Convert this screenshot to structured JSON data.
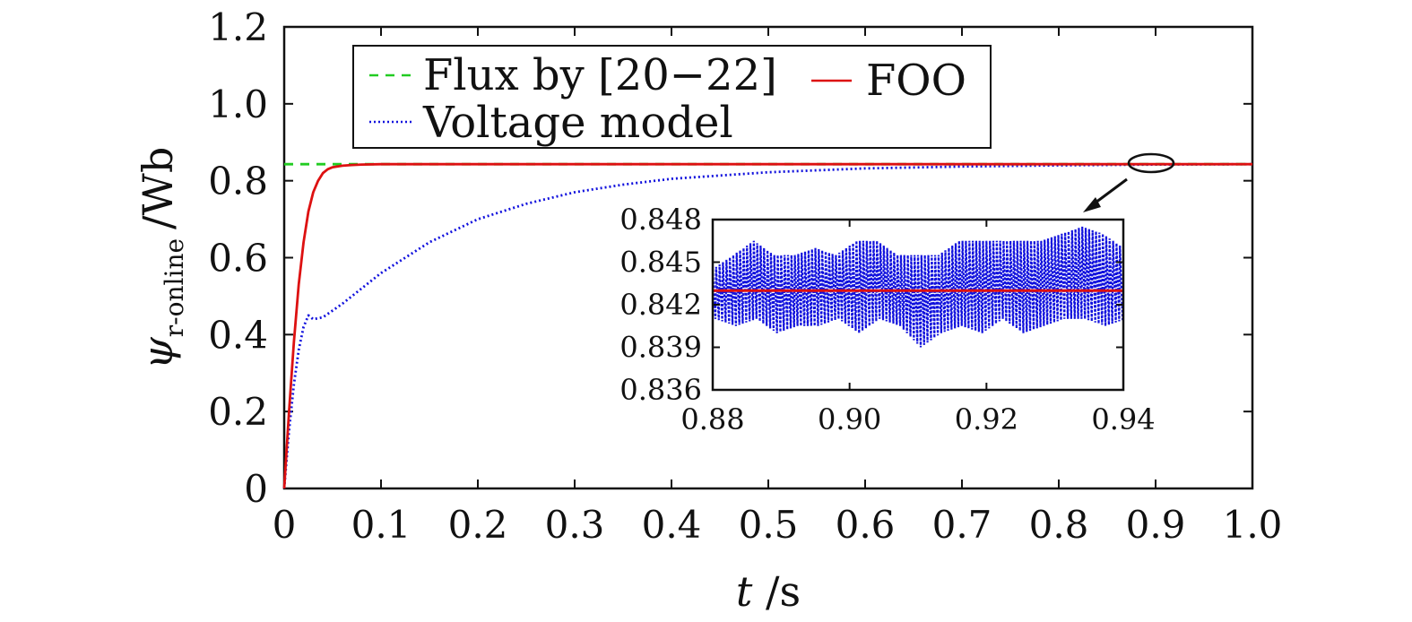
{
  "chart_data": [
    {
      "type": "line",
      "xlabel": "t /s",
      "xlabel_parts": {
        "var": "t",
        "unit": " /s"
      },
      "ylabel": "ψr-online /Wb",
      "ylabel_parts": {
        "psi": "ψ",
        "sub": "r-online",
        "unit": "/Wb"
      },
      "xlim": [
        0,
        1.0
      ],
      "ylim": [
        0,
        1.2
      ],
      "xticks": [
        0,
        0.1,
        0.2,
        0.3,
        0.4,
        0.5,
        0.6,
        0.7,
        0.8,
        0.9,
        1.0
      ],
      "xtick_labels": [
        "0",
        "0.1",
        "0.2",
        "0.3",
        "0.4",
        "0.5",
        "0.6",
        "0.7",
        "0.8",
        "0.9",
        "1.0"
      ],
      "yticks": [
        0,
        0.2,
        0.4,
        0.6,
        0.8,
        1.0,
        1.2
      ],
      "ytick_labels": [
        "0",
        "0.2",
        "0.4",
        "0.6",
        "0.8",
        "1.0",
        "1.2"
      ],
      "grid": false,
      "legend": {
        "position": "top-left"
      },
      "series": [
        {
          "name": "Flux by [20−22]",
          "color": "#22cc22",
          "style": "dashed",
          "x": [
            0,
            1.0
          ],
          "y": [
            0.843,
            0.843
          ]
        },
        {
          "name": "FOO",
          "color": "#dd1111",
          "style": "solid",
          "x": [
            0,
            0.005,
            0.01,
            0.015,
            0.02,
            0.025,
            0.03,
            0.035,
            0.04,
            0.045,
            0.05,
            0.06,
            0.07,
            0.08,
            0.1,
            0.2,
            0.4,
            0.6,
            0.8,
            1.0
          ],
          "y": [
            0,
            0.2,
            0.38,
            0.53,
            0.64,
            0.72,
            0.77,
            0.8,
            0.82,
            0.83,
            0.835,
            0.839,
            0.841,
            0.842,
            0.843,
            0.843,
            0.843,
            0.843,
            0.843,
            0.843
          ]
        },
        {
          "name": "Voltage model",
          "color": "#1111dd",
          "style": "dotted",
          "x": [
            0,
            0.005,
            0.01,
            0.015,
            0.02,
            0.025,
            0.03,
            0.04,
            0.06,
            0.08,
            0.1,
            0.15,
            0.2,
            0.25,
            0.3,
            0.35,
            0.4,
            0.5,
            0.6,
            0.7,
            0.8,
            0.9,
            1.0
          ],
          "y": [
            0,
            0.15,
            0.27,
            0.36,
            0.42,
            0.45,
            0.44,
            0.445,
            0.48,
            0.52,
            0.56,
            0.64,
            0.7,
            0.74,
            0.77,
            0.79,
            0.805,
            0.822,
            0.832,
            0.837,
            0.84,
            0.842,
            0.843
          ]
        }
      ],
      "annotations": [
        {
          "type": "ellipse",
          "x": 0.9,
          "y": 0.843,
          "note": "zoom region"
        },
        {
          "type": "arrow",
          "from": [
            0.905,
            0.8
          ],
          "to": [
            0.87,
            0.72
          ]
        }
      ]
    },
    {
      "type": "line",
      "role": "inset",
      "xlim": [
        0.88,
        0.94
      ],
      "ylim": [
        0.836,
        0.848
      ],
      "xticks": [
        0.88,
        0.9,
        0.92,
        0.94
      ],
      "xtick_labels": [
        "0.88",
        "0.90",
        "0.92",
        "0.94"
      ],
      "yticks": [
        0.836,
        0.839,
        0.842,
        0.845,
        0.848
      ],
      "ytick_labels": [
        "0.836",
        "0.839",
        "0.842",
        "0.845",
        "0.848"
      ],
      "grid": false,
      "series": [
        {
          "name": "Voltage model",
          "color": "#1111dd",
          "style": "dotted",
          "x": [
            0.88,
            0.883,
            0.886,
            0.889,
            0.892,
            0.895,
            0.898,
            0.901,
            0.904,
            0.907,
            0.91,
            0.913,
            0.916,
            0.919,
            0.922,
            0.925,
            0.928,
            0.931,
            0.934,
            0.937,
            0.94
          ],
          "y_min": [
            0.841,
            0.8405,
            0.841,
            0.84,
            0.8405,
            0.8405,
            0.841,
            0.84,
            0.841,
            0.8405,
            0.839,
            0.84,
            0.8405,
            0.84,
            0.841,
            0.84,
            0.8405,
            0.841,
            0.841,
            0.8405,
            0.841
          ],
          "y_max": [
            0.8445,
            0.8455,
            0.8465,
            0.8455,
            0.8455,
            0.846,
            0.8455,
            0.8465,
            0.8465,
            0.8455,
            0.8455,
            0.8455,
            0.8465,
            0.8465,
            0.8465,
            0.8465,
            0.8465,
            0.847,
            0.8475,
            0.847,
            0.846
          ]
        },
        {
          "name": "FOO",
          "color": "#dd1111",
          "style": "solid",
          "x": [
            0.88,
            0.94
          ],
          "y": [
            0.843,
            0.843
          ]
        }
      ]
    }
  ]
}
